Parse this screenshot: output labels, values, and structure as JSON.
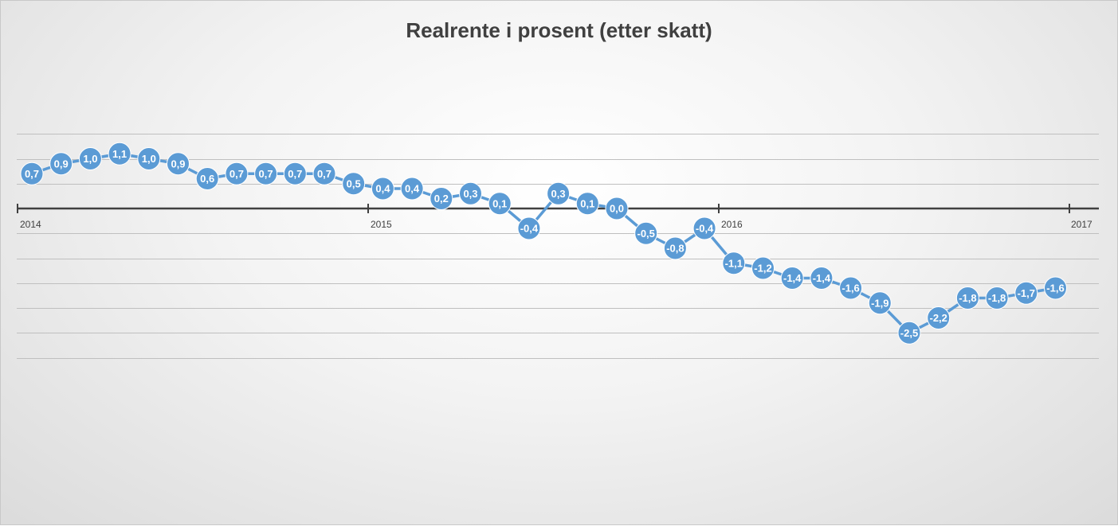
{
  "chart_data": {
    "type": "line",
    "title": "Realrente i prosent (etter skatt)",
    "xlabel": "",
    "ylabel": "",
    "x_tick_labels": [
      "2014",
      "2015",
      "2016",
      "2017"
    ],
    "ylim": [
      -3.0,
      1.5
    ],
    "grid": true,
    "legend": "none",
    "series_color": "#5B9BD5",
    "axis_color": "#404040",
    "gridline_color": "#bfbfbf",
    "series": [
      {
        "labels": [
          "0,7",
          "0,9",
          "1,0",
          "1,1",
          "1,0",
          "0,9",
          "0,6",
          "0,7",
          "0,7",
          "0,7",
          "0,7",
          "0,5",
          "0,4",
          "0,4",
          "0,2",
          "0,3",
          "0,1",
          "-0,4",
          "0,3",
          "0,1",
          "0,0",
          "-0,5",
          "-0,8",
          "-0,4",
          "-1,1",
          "-1,2",
          "-1,4",
          "-1,4",
          "-1,6",
          "-1,9",
          "-2,5",
          "-2,2",
          "-1,8",
          "-1,8",
          "-1,7",
          "-1,6"
        ],
        "values": [
          0.7,
          0.9,
          1.0,
          1.1,
          1.0,
          0.9,
          0.6,
          0.7,
          0.7,
          0.7,
          0.7,
          0.5,
          0.4,
          0.4,
          0.2,
          0.3,
          0.1,
          -0.4,
          0.3,
          0.1,
          0.0,
          -0.5,
          -0.8,
          -0.4,
          -1.1,
          -1.2,
          -1.4,
          -1.4,
          -1.6,
          -1.9,
          -2.5,
          -2.2,
          -1.8,
          -1.8,
          -1.7,
          -1.6
        ]
      }
    ]
  }
}
